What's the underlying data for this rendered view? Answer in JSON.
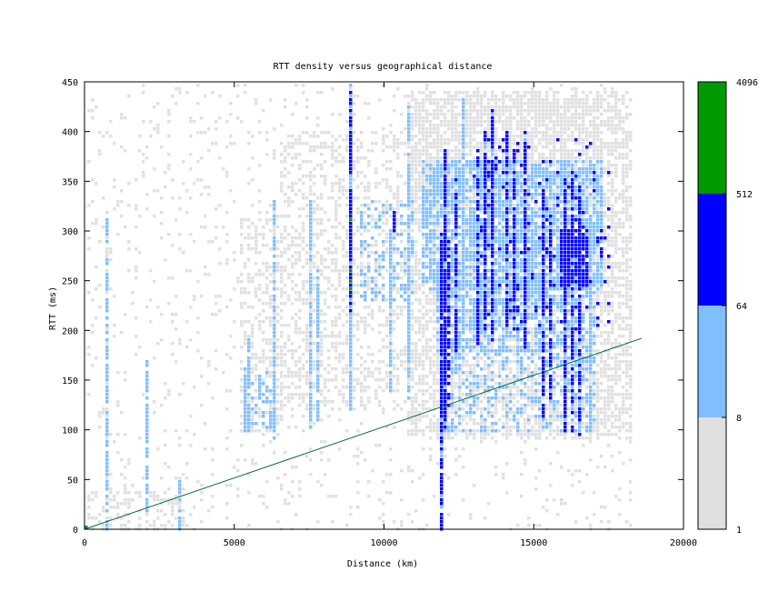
{
  "chart_data": {
    "type": "heatmap",
    "title": "RTT density versus geographical distance",
    "xlabel": "Distance (km)",
    "ylabel": "RTT (ms)",
    "xlim": [
      0,
      20000
    ],
    "ylim": [
      0,
      450
    ],
    "x_ticks": [
      0,
      5000,
      10000,
      15000,
      20000
    ],
    "y_ticks": [
      0,
      50,
      100,
      150,
      200,
      250,
      300,
      350,
      400,
      450
    ],
    "grid": false,
    "colorbar": {
      "scale": "log",
      "ticks": [
        1,
        8,
        64,
        512,
        4096
      ],
      "bins": [
        {
          "from": 1,
          "to": 8,
          "color": "#e0e0e0"
        },
        {
          "from": 8,
          "to": 64,
          "color": "#80bfff"
        },
        {
          "from": 64,
          "to": 512,
          "color": "#0000ff"
        },
        {
          "from": 512,
          "to": 4096,
          "color": "#009900"
        }
      ]
    },
    "reference_line": {
      "x": [
        0,
        18600
      ],
      "y": [
        0,
        192
      ],
      "color": "#006633"
    },
    "density_regions": [
      {
        "x": [
          200,
          18200
        ],
        "y": [
          0,
          450
        ],
        "level": 1,
        "density": 0.07
      },
      {
        "x": [
          10800,
          18300
        ],
        "y": [
          90,
          440
        ],
        "level": 1,
        "density": 0.55
      },
      {
        "x": [
          5300,
          6600
        ],
        "y": [
          100,
          310
        ],
        "level": 1,
        "density": 0.35
      },
      {
        "x": [
          6600,
          11000
        ],
        "y": [
          120,
          400
        ],
        "level": 1,
        "density": 0.3
      },
      {
        "x": [
          11000,
          17300
        ],
        "y": [
          330,
          430
        ],
        "level": 1,
        "density": 0.5
      },
      {
        "x": [
          0,
          3300
        ],
        "y": [
          0,
          40
        ],
        "level": 1,
        "density": 0.3
      },
      {
        "x": [
          11300,
          17300
        ],
        "y": [
          240,
          370
        ],
        "level": 2,
        "density": 0.65
      },
      {
        "x": [
          11800,
          17000
        ],
        "y": [
          180,
          250
        ],
        "level": 2,
        "density": 0.55
      },
      {
        "x": [
          12000,
          17000
        ],
        "y": [
          100,
          180
        ],
        "level": 2,
        "density": 0.3
      },
      {
        "x": [
          9200,
          11000
        ],
        "y": [
          230,
          330
        ],
        "level": 2,
        "density": 0.25
      },
      {
        "x": [
          5400,
          6300
        ],
        "y": [
          100,
          160
        ],
        "level": 2,
        "density": 0.3
      },
      {
        "x": [
          15900,
          16800
        ],
        "y": [
          245,
          300
        ],
        "level": 3,
        "density": 0.85
      },
      {
        "x": [
          13000,
          17500
        ],
        "y": [
          200,
          390
        ],
        "level": 3,
        "density": 0.07
      },
      {
        "x": [
          11900,
          12200
        ],
        "y": [
          120,
          290
        ],
        "level": 3,
        "density": 0.6
      }
    ],
    "vertical_streaks": [
      {
        "x": 0,
        "y": [
          0,
          200
        ],
        "level": 2
      },
      {
        "x": 700,
        "y": [
          0,
          320
        ],
        "level": 2
      },
      {
        "x": 2100,
        "y": [
          20,
          170
        ],
        "level": 2
      },
      {
        "x": 3200,
        "y": [
          0,
          50
        ],
        "level": 2
      },
      {
        "x": 5400,
        "y": [
          100,
          160
        ],
        "level": 2
      },
      {
        "x": 5500,
        "y": [
          100,
          190
        ],
        "level": 2
      },
      {
        "x": 6300,
        "y": [
          90,
          330
        ],
        "level": 2
      },
      {
        "x": 7500,
        "y": [
          100,
          330
        ],
        "level": 2
      },
      {
        "x": 7800,
        "y": [
          110,
          260
        ],
        "level": 2
      },
      {
        "x": 8900,
        "y": [
          120,
          450
        ],
        "level": 2
      },
      {
        "x": 8950,
        "y": [
          220,
          440
        ],
        "level": 3
      },
      {
        "x": 10200,
        "y": [
          140,
          300
        ],
        "level": 2
      },
      {
        "x": 10300,
        "y": [
          300,
          320
        ],
        "level": 3
      },
      {
        "x": 10800,
        "y": [
          130,
          440
        ],
        "level": 2
      },
      {
        "x": 11900,
        "y": [
          0,
          300
        ],
        "level": 3
      },
      {
        "x": 12000,
        "y": [
          100,
          380
        ],
        "level": 3
      },
      {
        "x": 12400,
        "y": [
          180,
          350
        ],
        "level": 3
      },
      {
        "x": 12700,
        "y": [
          180,
          430
        ],
        "level": 2
      },
      {
        "x": 13100,
        "y": [
          180,
          380
        ],
        "level": 3
      },
      {
        "x": 13400,
        "y": [
          200,
          400
        ],
        "level": 3
      },
      {
        "x": 13600,
        "y": [
          190,
          420
        ],
        "level": 3
      },
      {
        "x": 14100,
        "y": [
          200,
          400
        ],
        "level": 3
      },
      {
        "x": 14400,
        "y": [
          200,
          380
        ],
        "level": 3
      },
      {
        "x": 14700,
        "y": [
          180,
          400
        ],
        "level": 3
      },
      {
        "x": 15300,
        "y": [
          110,
          340
        ],
        "level": 3
      },
      {
        "x": 15600,
        "y": [
          130,
          320
        ],
        "level": 3
      },
      {
        "x": 16000,
        "y": [
          100,
          340
        ],
        "level": 3
      },
      {
        "x": 16300,
        "y": [
          100,
          370
        ],
        "level": 3
      },
      {
        "x": 16600,
        "y": [
          90,
          340
        ],
        "level": 3
      },
      {
        "x": 16900,
        "y": [
          100,
          310
        ],
        "level": 2
      },
      {
        "x": 17300,
        "y": [
          270,
          300
        ],
        "level": 3
      }
    ],
    "hot_cells": [
      {
        "x": 8950,
        "y": 310,
        "level": 4
      },
      {
        "x": 8950,
        "y": 260,
        "level": 4
      },
      {
        "x": 8950,
        "y": 250,
        "level": 4
      },
      {
        "x": 8950,
        "y": 240,
        "level": 4
      },
      {
        "x": 0,
        "y": 0,
        "level": 4
      }
    ]
  }
}
